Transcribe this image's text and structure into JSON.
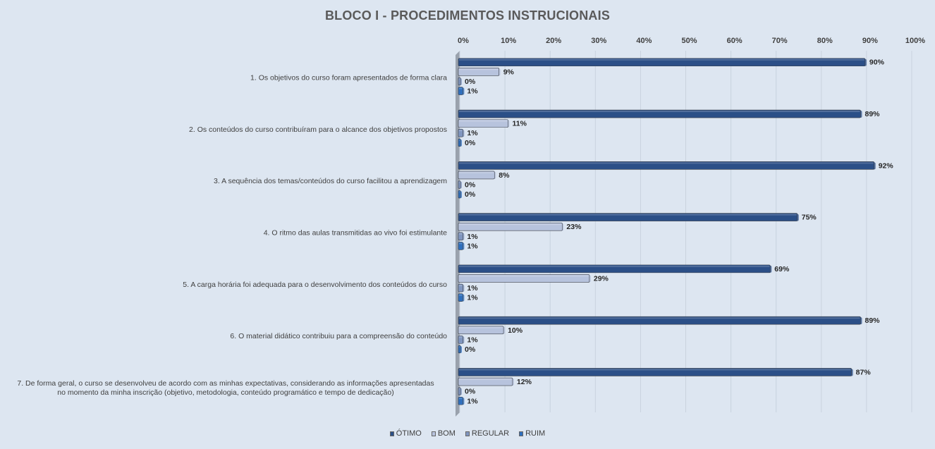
{
  "chart_data": {
    "type": "bar",
    "orientation": "horizontal",
    "title": "BLOCO I - PROCEDIMENTOS  INSTRUCIONAIS",
    "xlim": [
      0,
      100
    ],
    "x_ticks": [
      "0%",
      "10%",
      "20%",
      "30%",
      "40%",
      "50%",
      "60%",
      "70%",
      "80%",
      "90%",
      "100%"
    ],
    "x_axis_position": "top",
    "grid": true,
    "legend_position": "bottom",
    "categories": [
      [
        "1. Os objetivos do curso foram apresentados de forma clara"
      ],
      [
        "2. Os conteúdos do curso contribuíram para o alcance dos objetivos propostos"
      ],
      [
        "3. A sequência dos temas/conteúdos do curso facilitou a aprendizagem"
      ],
      [
        "4. O ritmo das aulas transmitidas ao vivo foi estimulante"
      ],
      [
        "5. A carga horária foi adequada para o desenvolvimento dos conteúdos do curso"
      ],
      [
        "6. O material didático contribuiu para a compreensão do conteúdo"
      ],
      [
        "7. De forma geral, o curso se desenvolveu de acordo com as minhas expectativas, considerando as informações apresentadas",
        "no momento da minha inscrição (objetivo, metodologia, conteúdo programático e tempo de dedicação)"
      ]
    ],
    "series": [
      {
        "name": "ÓTIMO",
        "color": "#2b4f87",
        "values": [
          90,
          89,
          92,
          75,
          69,
          89,
          87
        ]
      },
      {
        "name": "BOM",
        "color": "#b7c3dd",
        "values": [
          9,
          11,
          8,
          23,
          29,
          10,
          12
        ]
      },
      {
        "name": "REGULAR",
        "color": "#8096c0",
        "values": [
          0,
          1,
          0,
          1,
          1,
          1,
          0
        ]
      },
      {
        "name": "RUIM",
        "color": "#2f6fbd",
        "values": [
          1,
          0,
          0,
          1,
          1,
          0,
          1
        ]
      }
    ],
    "value_suffix": "%"
  }
}
